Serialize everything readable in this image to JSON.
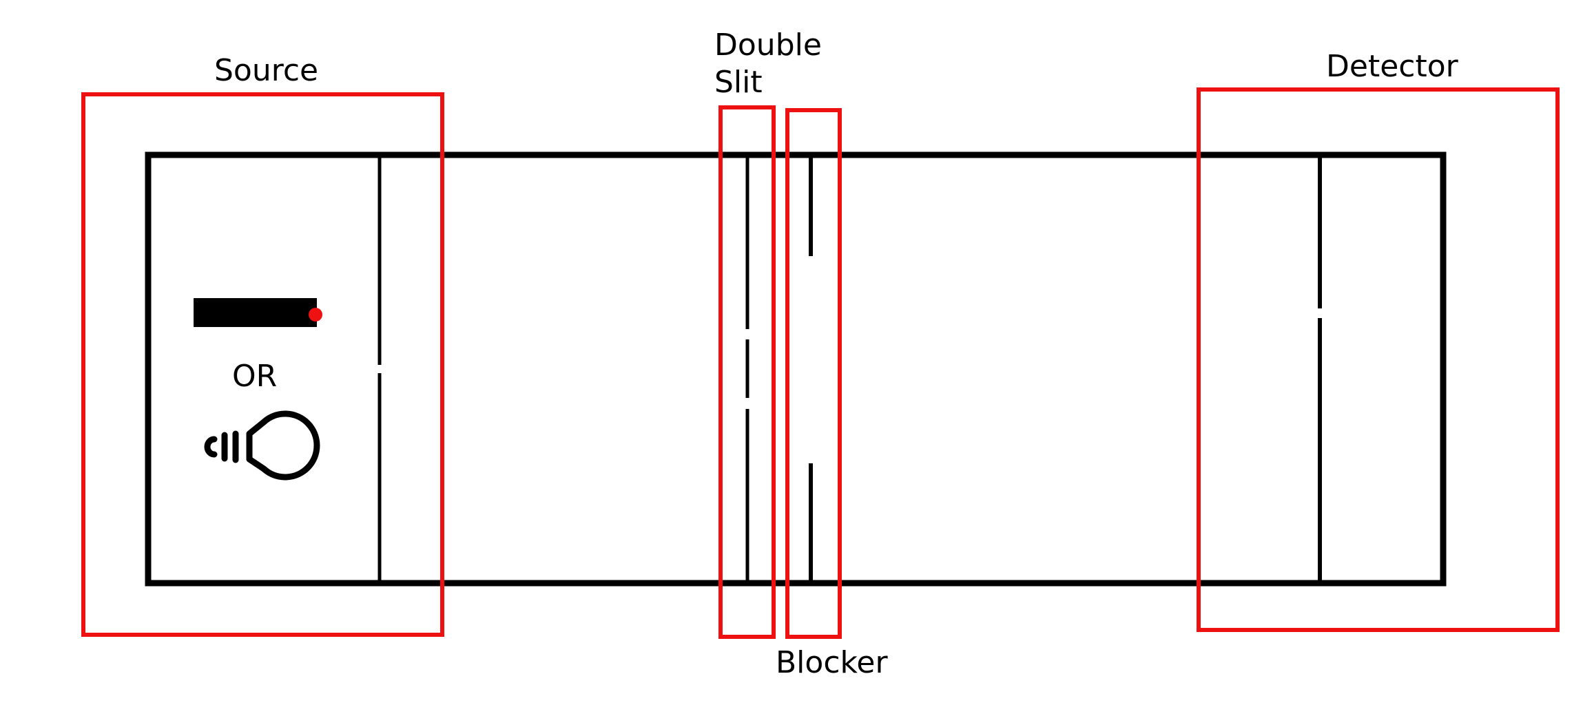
{
  "labels": {
    "source": "Source",
    "double_slit_line1": "Double",
    "double_slit_line2": "Slit",
    "detector": "Detector",
    "blocker": "Blocker",
    "or": "OR"
  },
  "icons": {
    "laser": "laser-icon",
    "bulb": "light-bulb-icon"
  },
  "colors": {
    "highlight": "#ee1111",
    "outline": "#000000",
    "laser_dot": "#ee1111"
  }
}
